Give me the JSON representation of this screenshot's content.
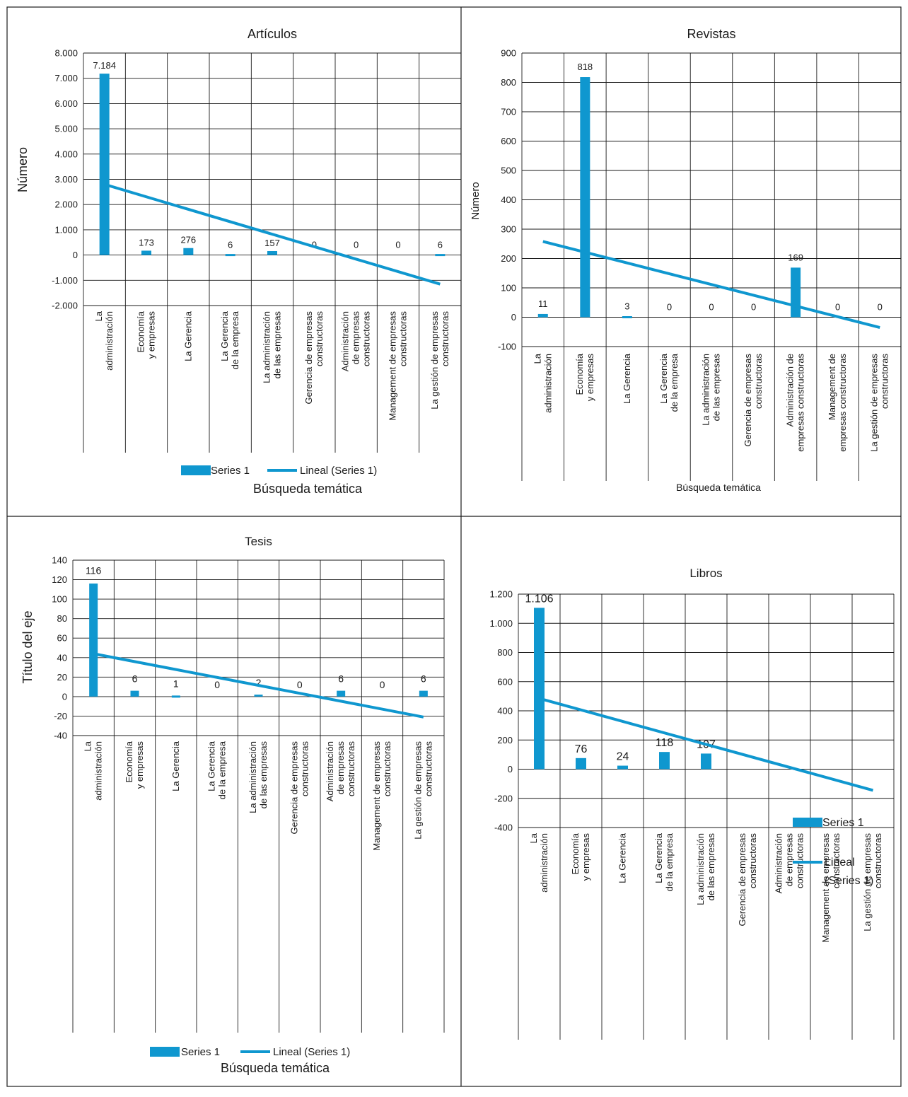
{
  "colors": {
    "bar": "#0f97cf",
    "trend": "#0f97cf",
    "grid": "#1a1a1a",
    "text": "#1a1a1a",
    "border": "#1a1a1a"
  },
  "chart_data": [
    {
      "type": "bar",
      "title": "Artículos",
      "ylabel": "Número",
      "xlabel": "Búsqueda temática",
      "ylim": [
        -2000,
        8000
      ],
      "yticks": [
        8000,
        7000,
        6000,
        5000,
        4000,
        3000,
        2000,
        1000,
        0,
        -1000,
        -2000
      ],
      "ytick_labels": [
        "8.000",
        "7.000",
        "6.000",
        "5.000",
        "4.000",
        "3.000",
        "2.000",
        "1.000",
        "0",
        "-1.000",
        "-2.000"
      ],
      "categories": [
        [
          "La",
          "administración"
        ],
        [
          "Economía",
          "y empresas"
        ],
        [
          "La Gerencia"
        ],
        [
          "La Gerencia",
          "de la empresa"
        ],
        [
          "La administración",
          "de las empresas"
        ],
        [
          "Gerencia de empresas",
          "constructoras"
        ],
        [
          "Administración",
          "de empresas",
          "constructoras"
        ],
        [
          "Management de empresas",
          "constructoras"
        ],
        [
          "La gestión de empresas",
          "constructoras"
        ]
      ],
      "series": [
        {
          "name": "Series 1",
          "values": [
            7184,
            173,
            276,
            6,
            157,
            0,
            0,
            0,
            6
          ]
        }
      ],
      "data_labels": [
        "7.184",
        "173",
        "276",
        "6",
        "157",
        "0",
        "0",
        "0",
        "6"
      ],
      "trendline": {
        "name": "Lineal (Series 1)",
        "start": 2800,
        "end": -1150
      },
      "legend": "bottom",
      "grid": true
    },
    {
      "type": "bar",
      "title": "Revistas",
      "ylabel": "Número",
      "xlabel": "Búsqueda temática",
      "ylim": [
        -100,
        900
      ],
      "yticks": [
        900,
        800,
        700,
        600,
        500,
        400,
        300,
        200,
        100,
        0,
        -100
      ],
      "ytick_labels": [
        "900",
        "800",
        "700",
        "600",
        "500",
        "400",
        "300",
        "200",
        "100",
        "0",
        "-100"
      ],
      "categories": [
        [
          "La",
          "administración"
        ],
        [
          "Economía",
          "y empresas"
        ],
        [
          "La Gerencia"
        ],
        [
          "La Gerencia",
          "de la empresa"
        ],
        [
          "La administración",
          "de las empresas"
        ],
        [
          "Gerencia de empresas",
          "constructoras"
        ],
        [
          "Administración de",
          "empresas constructoras"
        ],
        [
          "Management de",
          "empresas constructoras"
        ],
        [
          "La gestión de empresas",
          "constructoras"
        ]
      ],
      "series": [
        {
          "name": "Series 1",
          "values": [
            11,
            818,
            3,
            0,
            0,
            0,
            169,
            0,
            0
          ]
        }
      ],
      "data_labels": [
        "11",
        "818",
        "3",
        "0",
        "0",
        "0",
        "169",
        "0",
        "0"
      ],
      "trendline": {
        "name": "Lineal (Series 1)",
        "start": 258,
        "end": -35
      },
      "legend": "none",
      "grid": true
    },
    {
      "type": "bar",
      "title": "Tesis",
      "ylabel": "Título del eje",
      "xlabel": "Búsqueda temática",
      "ylim": [
        -40,
        140
      ],
      "yticks": [
        140,
        120,
        100,
        80,
        60,
        40,
        20,
        0,
        -20,
        -40
      ],
      "ytick_labels": [
        "140",
        "120",
        "100",
        "80",
        "60",
        "40",
        "20",
        "0",
        "-20",
        "-40"
      ],
      "categories": [
        [
          "La",
          "administración"
        ],
        [
          "Economía",
          "y empresas"
        ],
        [
          "La Gerencia"
        ],
        [
          "La Gerencia",
          "de la empresa"
        ],
        [
          "La administración",
          "de las empresas"
        ],
        [
          "Gerencia de empresas",
          "constructoras"
        ],
        [
          "Administración",
          "de empresas",
          "constructoras"
        ],
        [
          "Management de empresas",
          "constructoras"
        ],
        [
          "La gestión de empresas",
          "constructoras"
        ]
      ],
      "series": [
        {
          "name": "Series 1",
          "values": [
            116,
            6,
            1,
            0,
            2,
            0,
            6,
            0,
            6
          ]
        }
      ],
      "data_labels": [
        "116",
        "6",
        "1",
        "0",
        "2",
        "0",
        "6",
        "0",
        "6"
      ],
      "trendline": {
        "name": "Lineal (Series 1)",
        "start": 44,
        "end": -21
      },
      "legend": "bottom",
      "grid": true
    },
    {
      "type": "bar",
      "title": "Libros",
      "ylabel": "",
      "xlabel": "",
      "ylim": [
        -400,
        1200
      ],
      "yticks": [
        1200,
        1000,
        800,
        600,
        400,
        200,
        0,
        -200,
        -400
      ],
      "ytick_labels": [
        "1.200",
        "1.000",
        "800",
        "600",
        "400",
        "200",
        "0",
        "-200",
        "-400"
      ],
      "categories": [
        [
          "La",
          "administración"
        ],
        [
          "Economía",
          "y empresas"
        ],
        [
          "La Gerencia"
        ],
        [
          "La Gerencia",
          "de la empresa"
        ],
        [
          "La administración",
          "de las empresas"
        ],
        [
          "Gerencia de empresas",
          "constructoras"
        ],
        [
          "Administración",
          "de empresas",
          "constructoras"
        ],
        [
          "Management de empresas",
          "constructoras"
        ],
        [
          "La gestión de empresas",
          "constructoras"
        ]
      ],
      "series": [
        {
          "name": "Series 1",
          "values": [
            1106,
            76,
            24,
            118,
            107,
            0,
            0,
            0,
            0
          ]
        }
      ],
      "data_labels": [
        "1.106",
        "76",
        "24",
        "118",
        "107",
        "",
        "",
        "",
        ""
      ],
      "trendline": {
        "name": "Lineal (Series 1)",
        "start": 485,
        "end": -145
      },
      "legend": "right",
      "grid": true
    }
  ]
}
